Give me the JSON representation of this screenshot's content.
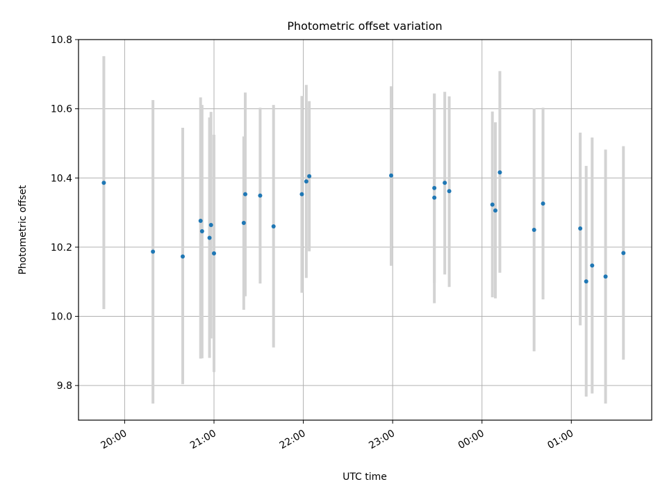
{
  "chart_data": {
    "type": "scatter",
    "title": "Photometric offset variation",
    "xlabel": "UTC time",
    "ylabel": "Photometric offset",
    "xlim": [
      "19:29",
      "01:54"
    ],
    "ylim": [
      9.7,
      10.8
    ],
    "x_ticks": [
      "20:00",
      "21:00",
      "22:00",
      "23:00",
      "00:00",
      "01:00"
    ],
    "y_ticks": [
      "9.8",
      "10.0",
      "10.2",
      "10.4",
      "10.6",
      "10.8"
    ],
    "grid": true,
    "point_color": "#1f77b4",
    "errorbar_color": "#d3d3d3",
    "points": [
      {
        "x": "19:46",
        "y": 10.386,
        "lo": 10.021,
        "hi": 10.752
      },
      {
        "x": "20:19",
        "y": 10.187,
        "lo": 9.748,
        "hi": 10.625
      },
      {
        "x": "20:39",
        "y": 10.173,
        "lo": 9.804,
        "hi": 10.545
      },
      {
        "x": "20:51",
        "y": 10.276,
        "lo": 9.878,
        "hi": 10.633
      },
      {
        "x": "20:52",
        "y": 10.246,
        "lo": 9.879,
        "hi": 10.611
      },
      {
        "x": "20:57",
        "y": 10.227,
        "lo": 9.88,
        "hi": 10.575
      },
      {
        "x": "20:58",
        "y": 10.264,
        "lo": 9.936,
        "hi": 10.591
      },
      {
        "x": "21:00",
        "y": 10.182,
        "lo": 9.839,
        "hi": 10.525
      },
      {
        "x": "21:20",
        "y": 10.27,
        "lo": 10.019,
        "hi": 10.52
      },
      {
        "x": "21:21",
        "y": 10.353,
        "lo": 10.058,
        "hi": 10.647
      },
      {
        "x": "21:31",
        "y": 10.349,
        "lo": 10.095,
        "hi": 10.603
      },
      {
        "x": "21:40",
        "y": 10.26,
        "lo": 9.91,
        "hi": 10.611
      },
      {
        "x": "21:59",
        "y": 10.353,
        "lo": 10.068,
        "hi": 10.637
      },
      {
        "x": "22:02",
        "y": 10.39,
        "lo": 10.111,
        "hi": 10.669
      },
      {
        "x": "22:04",
        "y": 10.405,
        "lo": 10.188,
        "hi": 10.622
      },
      {
        "x": "22:59",
        "y": 10.407,
        "lo": 10.146,
        "hi": 10.665
      },
      {
        "x": "23:28",
        "y": 10.343,
        "lo": 10.038,
        "hi": 10.644
      },
      {
        "x": "23:28",
        "y": 10.371,
        "lo": 10.097,
        "hi": 10.644
      },
      {
        "x": "23:35",
        "y": 10.386,
        "lo": 10.121,
        "hi": 10.649
      },
      {
        "x": "23:38",
        "y": 10.362,
        "lo": 10.085,
        "hi": 10.636
      },
      {
        "x": "00:07",
        "y": 10.323,
        "lo": 10.055,
        "hi": 10.592
      },
      {
        "x": "00:09",
        "y": 10.306,
        "lo": 10.052,
        "hi": 10.561
      },
      {
        "x": "00:12",
        "y": 10.416,
        "lo": 10.126,
        "hi": 10.709
      },
      {
        "x": "00:35",
        "y": 10.25,
        "lo": 9.899,
        "hi": 10.601
      },
      {
        "x": "00:41",
        "y": 10.326,
        "lo": 10.049,
        "hi": 10.603
      },
      {
        "x": "01:06",
        "y": 10.254,
        "lo": 9.974,
        "hi": 10.531
      },
      {
        "x": "01:10",
        "y": 10.101,
        "lo": 9.768,
        "hi": 10.435
      },
      {
        "x": "01:14",
        "y": 10.147,
        "lo": 9.777,
        "hi": 10.517
      },
      {
        "x": "01:23",
        "y": 10.115,
        "lo": 9.748,
        "hi": 10.482
      },
      {
        "x": "01:35",
        "y": 10.183,
        "lo": 9.875,
        "hi": 10.492
      }
    ]
  }
}
